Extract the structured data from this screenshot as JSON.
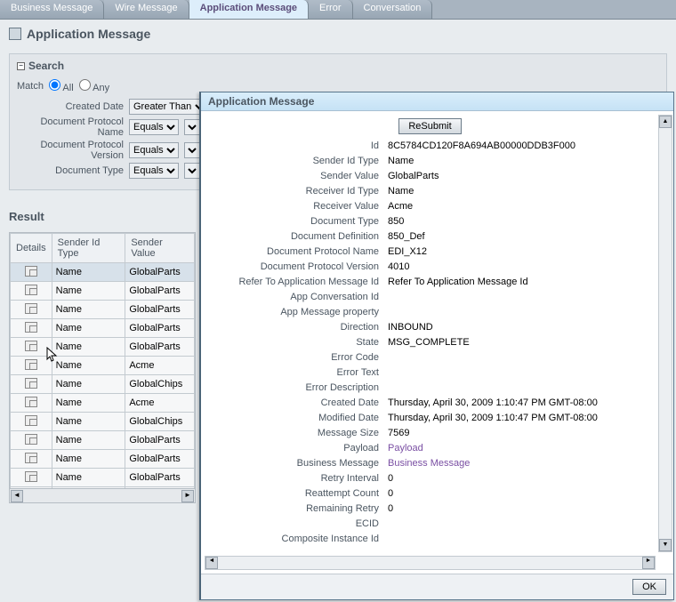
{
  "tabs": {
    "items": [
      {
        "label": "Business Message",
        "active": false
      },
      {
        "label": "Wire Message",
        "active": false
      },
      {
        "label": "Application Message",
        "active": true
      },
      {
        "label": "Error",
        "active": false
      },
      {
        "label": "Conversation",
        "active": false
      }
    ]
  },
  "page": {
    "title": "Application Message"
  },
  "search": {
    "title": "Search",
    "match_label": "Match",
    "all_label": "All",
    "any_label": "Any",
    "rows": [
      {
        "label": "Created Date",
        "op": "Greater Than"
      },
      {
        "label": "Document Protocol Name",
        "op": "Equals"
      },
      {
        "label": "Document Protocol Version",
        "op": "Equals"
      },
      {
        "label": "Document Type",
        "op": "Equals"
      }
    ]
  },
  "result": {
    "title": "Result",
    "columns": [
      "Details",
      "Sender Id Type",
      "Sender Value"
    ],
    "rows": [
      {
        "sender_id_type": "Name",
        "sender_value": "GlobalParts",
        "sel": true
      },
      {
        "sender_id_type": "Name",
        "sender_value": "GlobalParts"
      },
      {
        "sender_id_type": "Name",
        "sender_value": "GlobalParts"
      },
      {
        "sender_id_type": "Name",
        "sender_value": "GlobalParts"
      },
      {
        "sender_id_type": "Name",
        "sender_value": "GlobalParts"
      },
      {
        "sender_id_type": "Name",
        "sender_value": "Acme"
      },
      {
        "sender_id_type": "Name",
        "sender_value": "GlobalChips"
      },
      {
        "sender_id_type": "Name",
        "sender_value": "Acme"
      },
      {
        "sender_id_type": "Name",
        "sender_value": "GlobalChips"
      },
      {
        "sender_id_type": "Name",
        "sender_value": "GlobalParts"
      },
      {
        "sender_id_type": "Name",
        "sender_value": "GlobalParts"
      },
      {
        "sender_id_type": "Name",
        "sender_value": "GlobalParts"
      },
      {
        "sender_id_type": "Name",
        "sender_value": "GlobalParts"
      }
    ]
  },
  "dialog": {
    "title": "Application Message",
    "resubmit": "ReSubmit",
    "ok": "OK",
    "fields": [
      {
        "label": "Id",
        "value": "8C5784CD120F8A694AB00000DDB3F000"
      },
      {
        "label": "Sender Id Type",
        "value": "Name"
      },
      {
        "label": "Sender Value",
        "value": "GlobalParts"
      },
      {
        "label": "Receiver Id Type",
        "value": "Name"
      },
      {
        "label": "Receiver Value",
        "value": "Acme"
      },
      {
        "label": "Document Type",
        "value": "850"
      },
      {
        "label": "Document Definition",
        "value": "850_Def"
      },
      {
        "label": "Document Protocol Name",
        "value": "EDI_X12"
      },
      {
        "label": "Document Protocol Version",
        "value": "4010"
      },
      {
        "label": "Refer To Application Message Id",
        "value": "Refer To Application Message Id"
      },
      {
        "label": "App Conversation Id",
        "value": ""
      },
      {
        "label": "App Message property",
        "value": ""
      },
      {
        "label": "Direction",
        "value": "INBOUND"
      },
      {
        "label": "State",
        "value": "MSG_COMPLETE"
      },
      {
        "label": "Error Code",
        "value": ""
      },
      {
        "label": "Error Text",
        "value": ""
      },
      {
        "label": "Error Description",
        "value": ""
      },
      {
        "label": "Created Date",
        "value": "Thursday, April 30, 2009 1:10:47 PM GMT-08:00"
      },
      {
        "label": "Modified Date",
        "value": "Thursday, April 30, 2009 1:10:47 PM GMT-08:00"
      },
      {
        "label": "Message Size",
        "value": "7569"
      },
      {
        "label": "Payload",
        "value": "Payload",
        "link": true
      },
      {
        "label": "Business Message",
        "value": "Business Message",
        "link": true
      },
      {
        "label": "Retry Interval",
        "value": "0"
      },
      {
        "label": "Reattempt Count",
        "value": "0"
      },
      {
        "label": "Remaining Retry",
        "value": "0"
      },
      {
        "label": "ECID",
        "value": ""
      },
      {
        "label": "Composite Instance Id",
        "value": ""
      }
    ]
  }
}
